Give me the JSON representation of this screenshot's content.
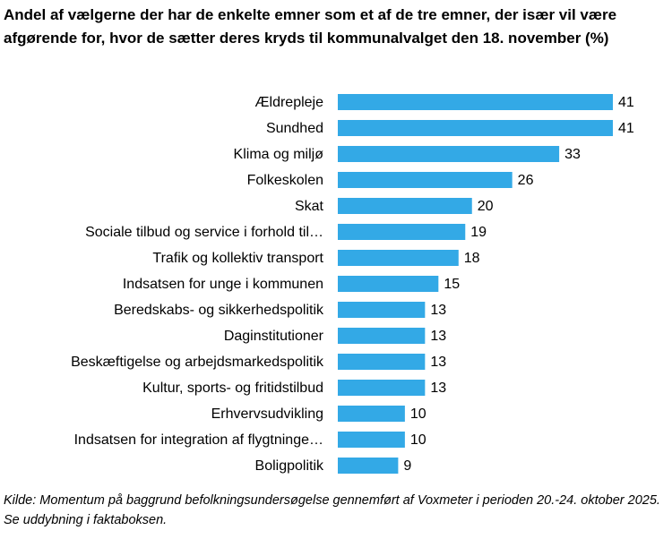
{
  "chart_data": {
    "type": "bar",
    "orientation": "horizontal",
    "title": "Andel af vælgerne der har de enkelte emner som et af de tre emner, der især vil være afgørende for, hvor de sætter deres kryds til kommunalvalget den 18. november (%)",
    "note": "Kilde: Momentum på baggrund befolkningsundersøgelse gennemført af Voxmeter i perioden 20.-24. oktober 2025. Se uddybning i faktaboksen.",
    "categories": [
      "Ældrepleje",
      "Sundhed",
      "Klima og miljø",
      "Folkeskolen",
      "Skat",
      "Sociale tilbud og service i forhold til…",
      "Trafik og kollektiv transport",
      "Indsatsen for unge i kommunen",
      "Beredskabs- og sikkerhedspolitik",
      "Daginstitutioner",
      "Beskæftigelse og arbejdsmarkedspolitik",
      "Kultur, sports- og fritidstilbud",
      "Erhvervsudvikling",
      "Indsatsen for integration af flygtninge…",
      "Boligpolitik"
    ],
    "values": [
      41,
      41,
      33,
      26,
      20,
      19,
      18,
      15,
      13,
      13,
      13,
      13,
      10,
      10,
      9
    ],
    "color": "#33a9e6"
  }
}
